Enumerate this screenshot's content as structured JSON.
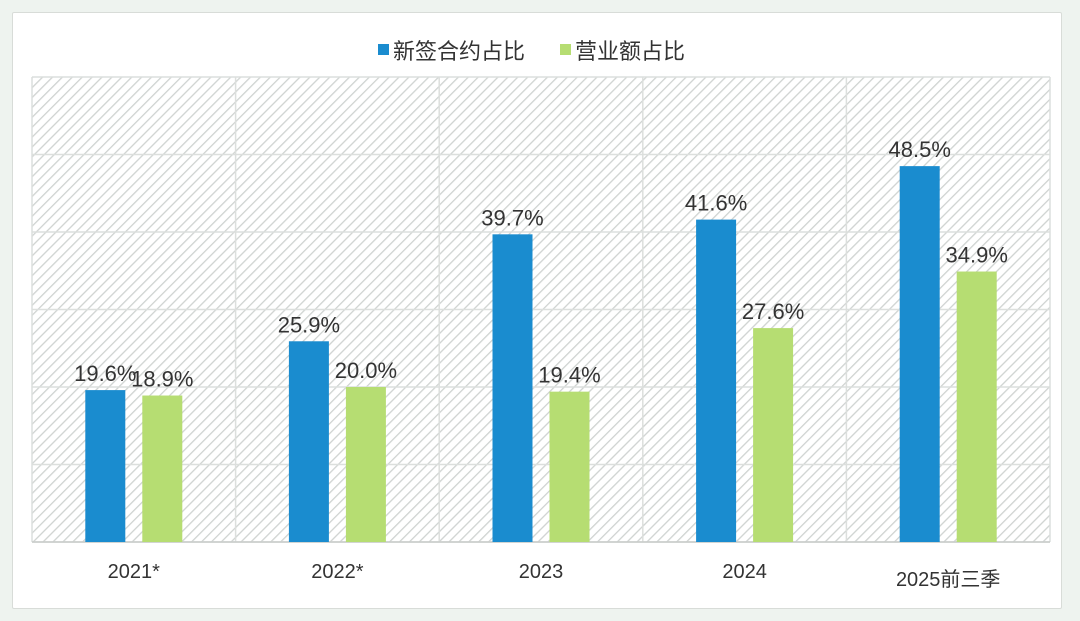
{
  "chart_data": {
    "type": "bar",
    "categories": [
      "2021*",
      "2022*",
      "2023",
      "2024",
      "2025前三季"
    ],
    "series": [
      {
        "name": "新签合约占比",
        "color": "#1a8ccf",
        "values": [
          19.6,
          25.9,
          39.7,
          41.6,
          48.5
        ],
        "labels": [
          "19.6%",
          "25.9%",
          "39.7%",
          "41.6%",
          "48.5%"
        ]
      },
      {
        "name": "营业额占比",
        "color": "#b6dd72",
        "values": [
          18.9,
          20.0,
          19.4,
          27.6,
          34.9
        ],
        "labels": [
          "18.9%",
          "20.0%",
          "19.4%",
          "27.6%",
          "34.9%"
        ]
      }
    ],
    "ylim": [
      0,
      60
    ],
    "grid": true,
    "legend_position": "top-center",
    "title": "",
    "xlabel": "",
    "ylabel": ""
  }
}
